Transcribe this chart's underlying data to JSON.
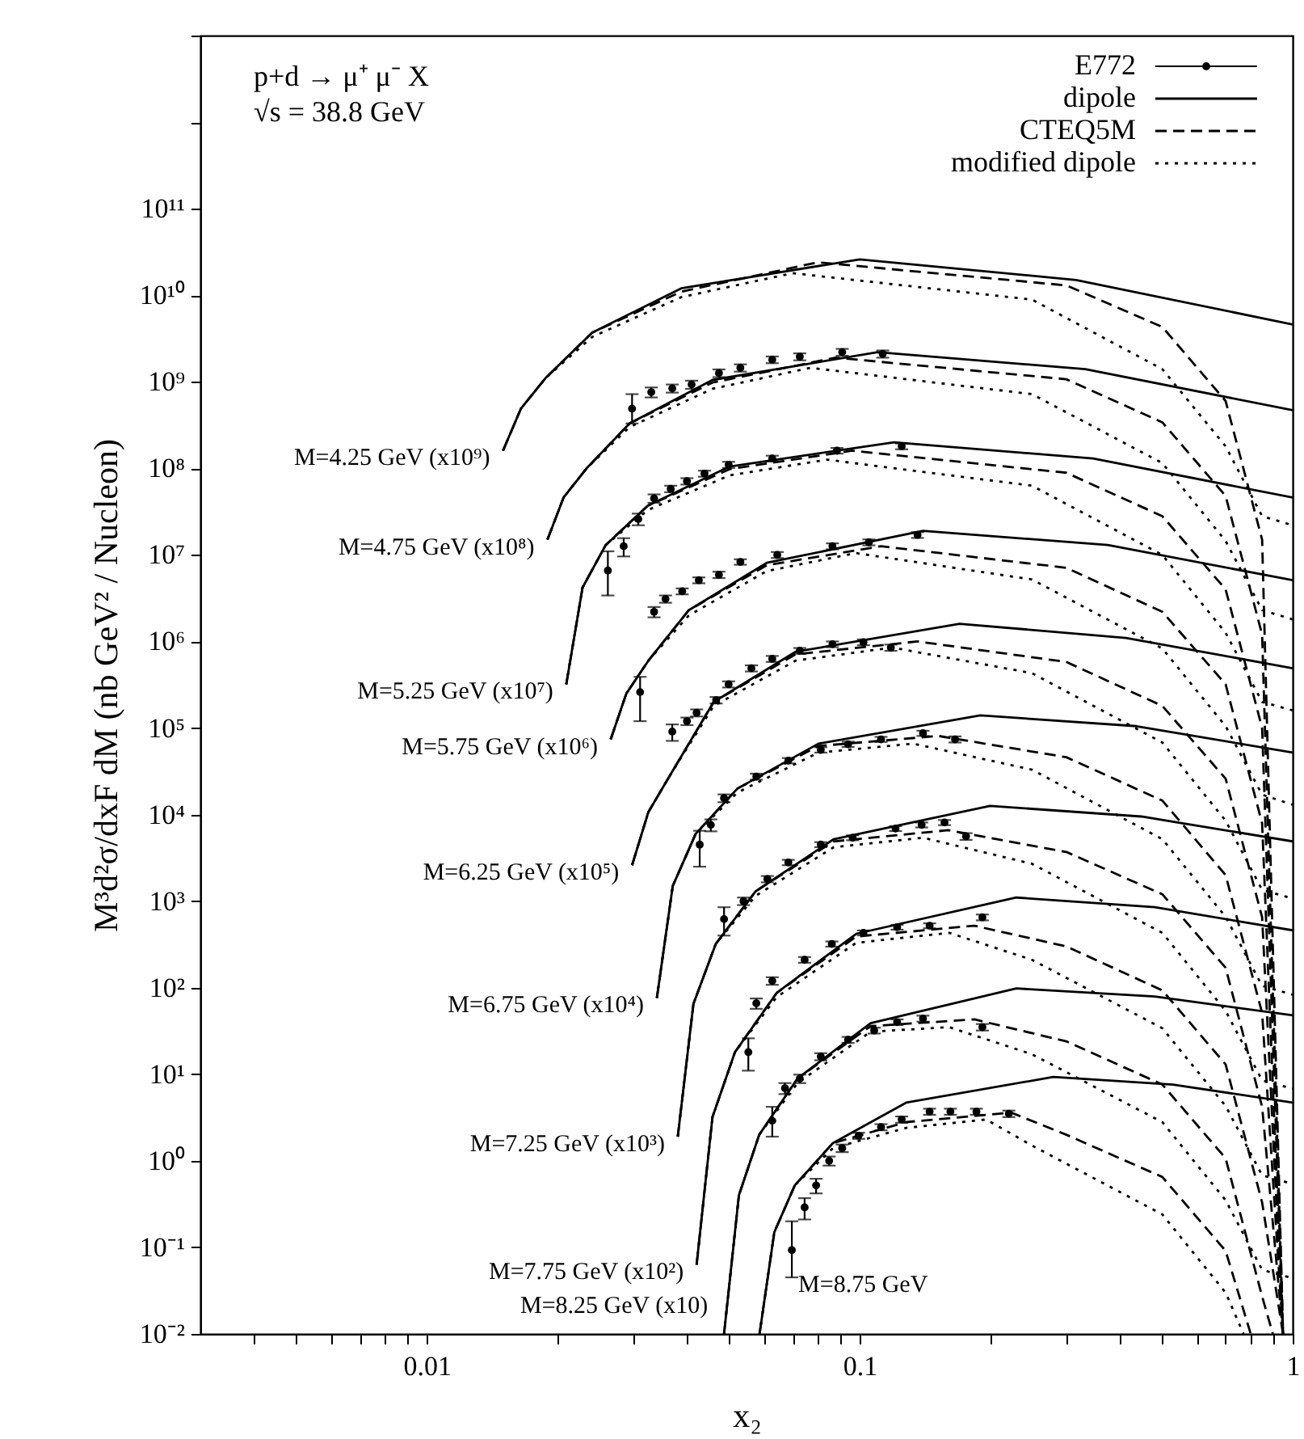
{
  "chart_data": {
    "type": "line",
    "xlabel": "x₂",
    "ylabel": "M³d²σ/dxF dM (nb GeV² / Nucleon)",
    "log": "xy",
    "legend": "top right",
    "xlim": [
      0.003,
      1
    ],
    "ylim": [
      0.01,
      10000000000000.0
    ],
    "xticks": [
      {
        "value": 0.004,
        "label": null
      },
      {
        "value": 0.005,
        "label": null
      },
      {
        "value": 0.006,
        "label": null
      },
      {
        "value": 0.007,
        "label": null
      },
      {
        "value": 0.008,
        "label": null
      },
      {
        "value": 0.009,
        "label": null
      },
      0.01,
      {
        "value": 0.02,
        "label": null
      },
      {
        "value": 0.03,
        "label": null
      },
      {
        "value": 0.04,
        "label": null
      },
      {
        "value": 0.05,
        "label": null
      },
      {
        "value": 0.06,
        "label": null
      },
      {
        "value": 0.07,
        "label": null
      },
      {
        "value": 0.08,
        "label": null
      },
      {
        "value": 0.09,
        "label": null
      },
      0.1,
      {
        "value": 0.2,
        "label": null
      },
      {
        "value": 0.3,
        "label": null
      },
      {
        "value": 0.4,
        "label": null
      },
      {
        "value": 0.5,
        "label": null
      },
      {
        "value": 0.6,
        "label": null
      },
      {
        "value": 0.7,
        "label": null
      },
      {
        "value": 0.8,
        "label": null
      },
      {
        "value": 0.9,
        "label": null
      },
      1
    ],
    "yticks": [
      {
        "value": 0.01,
        "label": "10⁻²"
      },
      {
        "value": 0.1,
        "label": "10⁻¹"
      },
      {
        "value": 1,
        "label": "10⁰"
      },
      {
        "value": 10,
        "label": "10¹"
      },
      {
        "value": 100,
        "label": "10²"
      },
      {
        "value": 1000,
        "label": "10³"
      },
      {
        "value": 10000.0,
        "label": "10⁴"
      },
      {
        "value": 100000.0,
        "label": "10⁵"
      },
      {
        "value": 1000000.0,
        "label": "10⁶"
      },
      {
        "value": 10000000.0,
        "label": "10⁷"
      },
      {
        "value": 100000000.0,
        "label": "10⁸"
      },
      {
        "value": 1000000000.0,
        "label": "10⁹"
      },
      {
        "value": 10000000000.0,
        "label": "10¹⁰"
      },
      {
        "value": 100000000000.0,
        "label": "10¹¹"
      },
      {
        "value": 1000000000000.0,
        "label": null
      },
      {
        "value": 10000000000000.0,
        "label": null
      }
    ],
    "annotations": [
      "p+d → μ⁺ μ⁻ X",
      "√s = 38.8 GeV",
      {
        "text": "M=4.25 GeV (x10⁹)",
        "x": 0.015,
        "y": 160000000.0
      },
      {
        "text": "M=4.75 GeV (x10⁸)",
        "x": 0.019,
        "y": 15000000.0
      },
      {
        "text": "M=5.25 GeV (x10⁷)",
        "x": 0.021,
        "y": 320000.0
      },
      {
        "text": "M=5.75 GeV (x10⁶)",
        "x": 0.0266,
        "y": 74000.0
      },
      {
        "text": "M=6.25 GeV (x10⁵)",
        "x": 0.0298,
        "y": 2600.0
      },
      {
        "text": "M=6.75 GeV (x10⁴)",
        "x": 0.034,
        "y": 76
      },
      {
        "text": "M=7.25 GeV (x10³)",
        "x": 0.038,
        "y": 1.9
      },
      {
        "text": "M=7.75 GeV (x10²)",
        "x": 0.042,
        "y": 0.063
      },
      {
        "text": "M=8.25 GeV (x10)",
        "x": 0.0486,
        "y": 0.01
      },
      {
        "text": "M=8.75 GeV",
        "x": 0.0697,
        "y": 0.093
      }
    ],
    "series": [
      {
        "name": "E772",
        "type": "scatter",
        "marker": "circle",
        "color": "#000000",
        "x": [
          0.0298,
          0.033,
          0.0369,
          0.0409,
          0.0473,
          0.053,
          0.0628,
          0.0727,
          0.0911,
          0.113
        ],
        "values": [
          490000000.0,
          760000000.0,
          840000000.0,
          930000000.0,
          1260000000.0,
          1450000000.0,
          1800000000.0,
          1950000000.0,
          2200000000.0,
          2100000000.0
        ],
        "errors": [
          [
            330000000.0,
            720000000.0
          ],
          100000000.0,
          90000000.0,
          100000000.0,
          130000000.0,
          140000000.0,
          160000000.0,
          180000000.0,
          200000000.0,
          200000000.0
        ]
      },
      {
        "name": "dipole",
        "type": "line",
        "line_style": "solid",
        "color": "#000000",
        "x": [
          0.015,
          0.0165,
          0.0188,
          0.0241,
          0.0387,
          0.1,
          0.316,
          1
        ],
        "values": [
          160000000.0,
          490000000.0,
          1100000000.0,
          3700000000.0,
          12000000000.0,
          26000000000.0,
          15000000000.0,
          4600000000.0
        ]
      },
      {
        "name": "CTEQ5M",
        "type": "line",
        "line_style": "dashed",
        "color": "#000000",
        "x": [
          0.015,
          0.0165,
          0.0188,
          0.0241,
          0.0387,
          0.08,
          0.3,
          0.5,
          0.7,
          0.85,
          0.95
        ],
        "values": [
          160000000.0,
          490000000.0,
          1100000000.0,
          3700000000.0,
          11000000000.0,
          24000000000.0,
          13000000000.0,
          4300000000.0,
          600000000.0,
          15000000.0,
          0.01
        ]
      },
      {
        "name": "modified dipole",
        "type": "line",
        "line_style": "dotted",
        "color": "#000000",
        "x": [
          0.015,
          0.0165,
          0.0188,
          0.0241,
          0.0387,
          0.07,
          0.25,
          0.5,
          0.7,
          0.85,
          1
        ],
        "values": [
          160000000.0,
          490000000.0,
          1100000000.0,
          3300000000.0,
          9500000000.0,
          18000000000.0,
          8900000000.0,
          1400000000.0,
          180000000.0,
          28000000.0,
          22000000.0
        ]
      },
      {
        "type": "line",
        "line_style": "solid",
        "color": "#000000",
        "x": [
          0.019,
          0.0207,
          0.0234,
          0.0294,
          0.0457,
          0.11,
          0.332,
          1
        ],
        "values": [
          15000000.0,
          46000000.0,
          100000000.0,
          330000000.0,
          1050000000.0,
          2200000000.0,
          1400000000.0,
          470000000.0
        ]
      },
      {
        "type": "line",
        "line_style": "solid",
        "color": "#000000",
        "x": [
          0.021,
          0.0229,
          0.0259,
          0.0324,
          0.0501,
          0.12,
          0.346,
          1
        ],
        "values": [
          320000.0,
          4200000.0,
          13000000.0,
          37000000.0,
          105000000.0,
          200000000.0,
          130000000.0,
          46000000.0
        ]
      },
      {
        "type": "line",
        "line_style": "solid",
        "color": "#000000",
        "x": [
          0.0266,
          0.0289,
          0.0325,
          0.0403,
          0.061,
          0.14,
          0.374,
          1
        ],
        "values": [
          74000.0,
          250000.0,
          600000.0,
          2300000.0,
          8100000.0,
          19000000.0,
          13000000.0,
          5100000.0
        ]
      },
      {
        "type": "line",
        "line_style": "solid",
        "color": "#000000",
        "x": [
          0.0298,
          0.0325,
          0.0367,
          0.046,
          0.0711,
          0.17,
          0.412,
          1
        ],
        "values": [
          2600.0,
          10700.0,
          30000.0,
          200000.0,
          760000.0,
          1600000.0,
          1100000.0,
          490000.0
        ]
      },
      {
        "type": "line",
        "line_style": "solid",
        "color": "#000000",
        "x": [
          0.034,
          0.037,
          0.0418,
          0.0522,
          0.0803,
          0.19,
          0.436,
          1
        ],
        "values": [
          76,
          1500.0,
          6000.0,
          20000.0,
          66000.0,
          140000.0,
          105000.0,
          52000.0
        ]
      },
      {
        "type": "line",
        "line_style": "solid",
        "color": "#000000",
        "x": [
          0.038,
          0.0413,
          0.0465,
          0.0575,
          0.0871,
          0.2,
          0.447,
          1
        ],
        "values": [
          1.9,
          65,
          320,
          1300.0,
          5200.0,
          12600.0,
          9500.0,
          4900.0
        ]
      },
      {
        "type": "line",
        "line_style": "solid",
        "color": "#000000",
        "x": [
          0.042,
          0.0457,
          0.0515,
          0.0643,
          0.0982,
          0.23,
          0.48,
          1
        ],
        "values": [
          0.063,
          3.2,
          18,
          87,
          420,
          1100.0,
          850,
          460
        ]
      },
      {
        "type": "line",
        "line_style": "solid",
        "color": "#000000",
        "x": [
          0.0486,
          0.0526,
          0.0586,
          0.0718,
          0.106,
          0.23,
          0.48,
          1
        ],
        "values": [
          0.01,
          0.4,
          2.0,
          8.9,
          39,
          98,
          79,
          48
        ]
      },
      {
        "type": "line",
        "line_style": "solid",
        "color": "#000000",
        "x": [
          0.0587,
          0.0635,
          0.0708,
          0.0867,
          0.128,
          0.28,
          0.529,
          1
        ],
        "values": [
          0.01,
          0.15,
          0.52,
          1.6,
          4.7,
          9.3,
          7.6,
          4.7
        ]
      },
      {
        "type": "line",
        "line_style": "dashed",
        "color": "#000000",
        "x": [
          0.019,
          0.0207,
          0.0234,
          0.0294,
          0.0457,
          0.088,
          0.3,
          0.5,
          0.7,
          0.85,
          0.95
        ],
        "values": [
          15000000.0,
          46000000.0,
          100000000.0,
          330000000.0,
          980000000.0,
          1900000000.0,
          1070000000.0,
          340000000.0,
          48000000.0,
          1200000.0,
          0.01
        ]
      },
      {
        "type": "line",
        "line_style": "dashed",
        "color": "#000000",
        "x": [
          0.021,
          0.0229,
          0.0259,
          0.0324,
          0.0501,
          0.096,
          0.3,
          0.5,
          0.7,
          0.85,
          0.95
        ],
        "values": [
          320000.0,
          4200000.0,
          13000000.0,
          37000000.0,
          98000000.0,
          160000000.0,
          89000000.0,
          28000000.0,
          4000000.0,
          100000.0,
          0.01
        ]
      },
      {
        "type": "line",
        "line_style": "dashed",
        "color": "#000000",
        "x": [
          0.0266,
          0.0289,
          0.0325,
          0.0403,
          0.061,
          0.112,
          0.3,
          0.5,
          0.7,
          0.85,
          0.95
        ],
        "values": [
          74000.0,
          250000.0,
          600000.0,
          2300000.0,
          7600000.0,
          12600000.0,
          7100000.0,
          2200000.0,
          320000.0,
          7900.0,
          0.01
        ]
      },
      {
        "type": "line",
        "line_style": "dashed",
        "color": "#000000",
        "x": [
          0.0298,
          0.0325,
          0.0367,
          0.046,
          0.0711,
          0.136,
          0.3,
          0.5,
          0.7,
          0.85,
          0.95
        ],
        "values": [
          2600.0,
          10700.0,
          30000.0,
          200000.0,
          710000.0,
          1000000.0,
          580000.0,
          180000.0,
          26000.0,
          650,
          0.01
        ]
      },
      {
        "type": "line",
        "line_style": "dashed",
        "color": "#000000",
        "x": [
          0.034,
          0.037,
          0.0418,
          0.0522,
          0.0803,
          0.152,
          0.3,
          0.5,
          0.7,
          0.85,
          0.95
        ],
        "values": [
          76,
          1500.0,
          6000.0,
          20000.0,
          62000.0,
          81000.0,
          46000.0,
          14500.0,
          2000.0,
          51,
          0.01
        ]
      },
      {
        "type": "line",
        "line_style": "dashed",
        "color": "#000000",
        "x": [
          0.038,
          0.0413,
          0.0465,
          0.0575,
          0.0871,
          0.16,
          0.3,
          0.5,
          0.7,
          0.85,
          0.95
        ],
        "values": [
          1.9,
          65,
          320,
          1300.0,
          4900.0,
          6600.0,
          3700.0,
          1200.0,
          170,
          4.2,
          0.01
        ]
      },
      {
        "type": "line",
        "line_style": "dashed",
        "color": "#000000",
        "x": [
          0.042,
          0.0457,
          0.0515,
          0.0643,
          0.0982,
          0.184,
          0.3,
          0.5,
          0.7,
          0.85,
          0.95
        ],
        "values": [
          0.063,
          3.2,
          18,
          87,
          390,
          520,
          300,
          93,
          13,
          0.33,
          0.01
        ]
      },
      {
        "type": "line",
        "line_style": "dashed",
        "color": "#000000",
        "x": [
          0.0486,
          0.0526,
          0.0586,
          0.0718,
          0.106,
          0.184,
          0.3,
          0.5,
          0.7,
          0.85,
          0.9
        ],
        "values": [
          0.01,
          0.4,
          2.0,
          8.9,
          36,
          43,
          24,
          7.6,
          1.07,
          0.027,
          0.01
        ]
      },
      {
        "type": "line",
        "line_style": "dashed",
        "color": "#000000",
        "x": [
          0.0587,
          0.0635,
          0.0708,
          0.0867,
          0.128,
          0.224,
          0.3,
          0.5,
          0.7,
          0.8
        ],
        "values": [
          0.01,
          0.15,
          0.52,
          1.6,
          2.8,
          3.6,
          2.0,
          0.65,
          0.091,
          0.01
        ]
      },
      {
        "type": "line",
        "line_style": "dotted",
        "color": "#000000",
        "x": [
          0.019,
          0.0207,
          0.0234,
          0.0294,
          0.0457,
          0.077,
          0.25,
          0.5,
          0.7,
          0.85,
          1
        ],
        "values": [
          15000000.0,
          46000000.0,
          100000000.0,
          300000000.0,
          830000000.0,
          1450000000.0,
          720000000.0,
          115000000.0,
          14500000.0,
          2300000.0,
          1800000.0
        ]
      },
      {
        "type": "line",
        "line_style": "dotted",
        "color": "#000000",
        "x": [
          0.021,
          0.0229,
          0.0259,
          0.0324,
          0.0501,
          0.084,
          0.25,
          0.5,
          0.7,
          0.85,
          1
        ],
        "values": [
          320000.0,
          4200000.0,
          13000000.0,
          33000000.0,
          83000000.0,
          126000000.0,
          63000000.0,
          10000000.0,
          1260000.0,
          200000.0,
          160000.0
        ]
      },
      {
        "type": "line",
        "line_style": "dotted",
        "color": "#000000",
        "x": [
          0.0266,
          0.0289,
          0.0325,
          0.0403,
          0.061,
          0.098,
          0.25,
          0.5,
          0.7,
          0.85,
          1
        ],
        "values": [
          74000.0,
          250000.0,
          600000.0,
          2000000.0,
          6500000.0,
          10500000.0,
          5200000.0,
          830000.0,
          105000.0,
          17000.0,
          13000.0
        ]
      },
      {
        "type": "line",
        "line_style": "dotted",
        "color": "#000000",
        "x": [
          0.0298,
          0.0325,
          0.0367,
          0.046,
          0.0711,
          0.119,
          0.25,
          0.5,
          0.7,
          0.85,
          1
        ],
        "values": [
          2600.0,
          10700.0,
          30000.0,
          180000.0,
          600000.0,
          850000.0,
          430000.0,
          68000.0,
          8500.0,
          1350.0,
          1070.0
        ]
      },
      {
        "type": "line",
        "line_style": "dotted",
        "color": "#000000",
        "x": [
          0.034,
          0.037,
          0.0418,
          0.0522,
          0.0803,
          0.133,
          0.25,
          0.5,
          0.7,
          0.85,
          1
        ],
        "values": [
          76,
          1500.0,
          6000.0,
          18000.0,
          52000.0,
          66000.0,
          33000.0,
          5200.0,
          660,
          105,
          83
        ]
      },
      {
        "type": "line",
        "line_style": "dotted",
        "color": "#000000",
        "x": [
          0.038,
          0.0413,
          0.0465,
          0.0575,
          0.0871,
          0.14,
          0.25,
          0.5,
          0.7,
          0.85,
          1
        ],
        "values": [
          1.9,
          65,
          320,
          1150.0,
          4200.0,
          5400.0,
          2700.0,
          430,
          54,
          8.5,
          6.8
        ]
      },
      {
        "type": "line",
        "line_style": "dotted",
        "color": "#000000",
        "x": [
          0.042,
          0.0457,
          0.0515,
          0.0643,
          0.0982,
          0.161,
          0.25,
          0.5,
          0.7,
          0.85,
          1
        ],
        "values": [
          0.063,
          3.2,
          18,
          78,
          330,
          430,
          210,
          34,
          4.3,
          0.68,
          0.54
        ]
      },
      {
        "type": "line",
        "line_style": "dotted",
        "color": "#000000",
        "x": [
          0.0486,
          0.0526,
          0.0586,
          0.0718,
          0.106,
          0.161,
          0.25,
          0.5,
          0.7,
          0.85,
          1
        ],
        "values": [
          0.01,
          0.4,
          2.0,
          7.9,
          31,
          35,
          17,
          2.8,
          0.35,
          0.055,
          0.044
        ]
      },
      {
        "type": "line",
        "line_style": "dotted",
        "color": "#000000",
        "x": [
          0.0587,
          0.0635,
          0.0708,
          0.0867,
          0.128,
          0.196,
          0.25,
          0.5,
          0.7,
          0.77
        ],
        "values": [
          0.01,
          0.15,
          0.52,
          1.4,
          2.4,
          3.0,
          1.5,
          0.24,
          0.03,
          0.01
        ]
      },
      {
        "type": "scatter",
        "marker": "circle",
        "color": "#000000",
        "x": [
          0.0262,
          0.0285,
          0.0308,
          0.0335,
          0.0366,
          0.0399,
          0.0438,
          0.0498,
          0.0628,
          0.0886,
          0.125
        ],
        "values": [
          6600000.0,
          12600000.0,
          26000000.0,
          45000000.0,
          58000000.0,
          71000000.0,
          87000000.0,
          110000000.0,
          130000000.0,
          160000000.0,
          180000000.0
        ],
        "errors": [
          [
            3400000.0,
            11000000.0
          ],
          3000000.0,
          4000000.0,
          5000000.0,
          5000000.0,
          6000000.0,
          7000000.0,
          9000000.0,
          10000000.0,
          12000000.0,
          14000000.0
        ]
      },
      {
        "type": "scatter",
        "marker": "circle",
        "color": "#000000",
        "x": [
          0.0311,
          0.0335,
          0.0356,
          0.0389,
          0.0425,
          0.0473,
          0.053,
          0.0645,
          0.0865,
          0.105,
          0.136
        ],
        "values": [
          260000.0,
          2200000.0,
          3100000.0,
          3800000.0,
          5100000.0,
          5900000.0,
          8300000.0,
          10000000.0,
          12600000.0,
          14000000.0,
          17000000.0
        ],
        "errors": [
          [
            120000.0,
            390000.0
          ],
          300000.0,
          300000.0,
          300000.0,
          400000.0,
          500000.0,
          600000.0,
          800000.0,
          1000000.0,
          1100000.0,
          1300000.0
        ]
      },
      {
        "type": "scatter",
        "marker": "circle",
        "color": "#000000",
        "x": [
          0.0369,
          0.0399,
          0.042,
          0.0466,
          0.0498,
          0.0562,
          0.0628,
          0.0727,
          0.0865,
          0.102,
          0.118
        ],
        "values": [
          91000.0,
          120000.0,
          150000.0,
          210000.0,
          320000.0,
          490000.0,
          630000.0,
          780000.0,
          930000.0,
          980000.0,
          850000.0
        ],
        "errors": [
          [
            71000.0,
            110000.0
          ],
          12000.0,
          14000.0,
          18000.0,
          26000.0,
          40000.0,
          50000.0,
          60000.0,
          70000.0,
          75000.0,
          70000.0
        ]
      },
      {
        "type": "scatter",
        "marker": "circle",
        "color": "#000000",
        "x": [
          0.0427,
          0.0453,
          0.0486,
          0.0577,
          0.0684,
          0.0813,
          0.094,
          0.112,
          0.14,
          0.166
        ],
        "values": [
          4500.0,
          7600.0,
          15500.0,
          27500.0,
          42000.0,
          56000.0,
          65000.0,
          74000.0,
          87000.0,
          74000.0
        ],
        "errors": [
          [
            2500.0,
            6500.0
          ],
          1200.0,
          1600.0,
          2200.0,
          3000.0,
          4000.0,
          4500.0,
          5000.0,
          6000.0,
          6000.0
        ]
      },
      {
        "type": "scatter",
        "marker": "circle",
        "color": "#000000",
        "x": [
          0.0486,
          0.0539,
          0.0612,
          0.0684,
          0.0813,
          0.0963,
          0.121,
          0.139,
          0.157,
          0.176
        ],
        "values": [
          620,
          1000,
          1800,
          2800,
          4500,
          5400,
          6900,
          7600,
          8100,
          5600
        ],
        "errors": [
          [
            400,
            850
          ],
          100,
          150,
          200,
          300,
          350,
          450,
          500,
          550,
          500
        ]
      },
      {
        "type": "scatter",
        "marker": "circle",
        "color": "#000000",
        "x": [
          0.0553,
          0.0577,
          0.0628,
          0.0746,
          0.0862,
          0.102,
          0.122,
          0.145,
          0.192
        ],
        "values": [
          18,
          66,
          120,
          210,
          320,
          430,
          500,
          520,
          650
        ],
        "errors": [
          [
            11,
            26
          ],
          9,
          12,
          16,
          22,
          28,
          32,
          34,
          50
        ]
      },
      {
        "type": "scatter",
        "marker": "circle",
        "color": "#000000",
        "x": [
          0.0628,
          0.0672,
          0.0727,
          0.0813,
          0.094,
          0.108,
          0.122,
          0.14,
          0.192
        ],
        "values": [
          2.9,
          6.9,
          8.9,
          16,
          25,
          32,
          40,
          44,
          35
        ],
        "errors": [
          [
            1.9,
            4.2
          ],
          1.0,
          1.0,
          1.5,
          2,
          2.5,
          3,
          3.5,
          3
        ]
      },
      {
        "type": "scatter",
        "marker": "circle",
        "color": "#000000",
        "x": [
          0.0697,
          0.0746,
          0.0793,
          0.085,
          0.0911,
          0.0994,
          0.112,
          0.125,
          0.145,
          0.162,
          0.186,
          0.221
        ],
        "values": [
          0.093,
          0.29,
          0.52,
          1.0,
          1.4,
          1.95,
          2.45,
          3.0,
          3.7,
          3.7,
          3.7,
          3.5
        ],
        "errors": [
          [
            0.045,
            0.2
          ],
          0.08,
          0.1,
          0.12,
          0.14,
          0.16,
          0.2,
          0.25,
          0.3,
          0.3,
          0.3,
          0.3
        ]
      }
    ]
  }
}
